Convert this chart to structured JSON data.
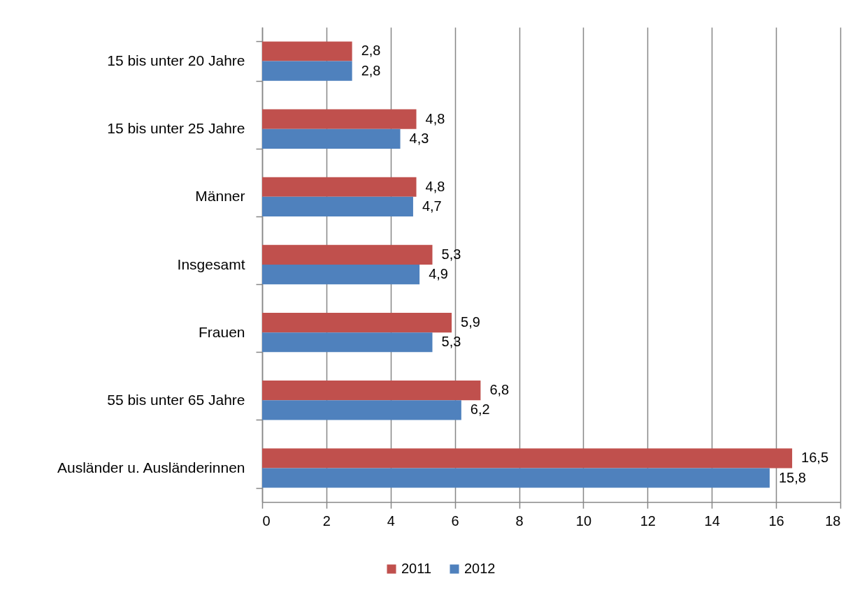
{
  "chart_data": {
    "type": "bar",
    "orientation": "horizontal",
    "categories": [
      "15 bis unter 20 Jahre",
      "15 bis unter 25 Jahre",
      "Männer",
      "Insgesamt",
      "Frauen",
      "55 bis unter 65 Jahre",
      "Ausländer u. Ausländerinnen"
    ],
    "series": [
      {
        "name": "2011",
        "color": "#c0504d",
        "values": [
          2.8,
          4.8,
          4.8,
          5.3,
          5.9,
          6.8,
          16.5
        ],
        "value_labels": [
          "2,8",
          "4,8",
          "4,8",
          "5,3",
          "5,9",
          "6,8",
          "16,5"
        ]
      },
      {
        "name": "2012",
        "color": "#4f81bd",
        "values": [
          2.8,
          4.3,
          4.7,
          4.9,
          5.3,
          6.2,
          15.8
        ],
        "value_labels": [
          "2,8",
          "4,3",
          "4,7",
          "4,9",
          "5,3",
          "6,2",
          "15,8"
        ]
      }
    ],
    "xlim": [
      0,
      18
    ],
    "xticks": [
      0,
      2,
      4,
      6,
      8,
      10,
      12,
      14,
      16,
      18
    ],
    "grid": "x",
    "legend": "bottom"
  }
}
